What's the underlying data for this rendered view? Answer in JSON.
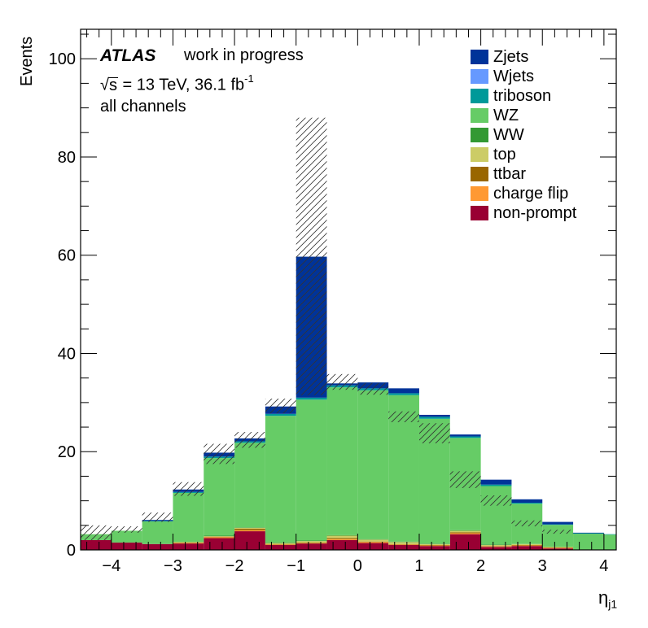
{
  "chart_data": {
    "type": "bar",
    "stacked": true,
    "x_edges": [
      -4.5,
      -4.0,
      -3.5,
      -3.0,
      -2.5,
      -2.0,
      -1.5,
      -1.0,
      -0.5,
      0.0,
      0.5,
      1.0,
      1.5,
      2.0,
      2.5,
      3.0,
      3.5,
      4.0,
      4.5
    ],
    "series": [
      {
        "name": "non-prompt",
        "color": "#990033",
        "values": [
          2.0,
          1.5,
          1.2,
          1.3,
          2.4,
          3.8,
          1.0,
          1.3,
          2.0,
          1.4,
          1.0,
          0.8,
          3.2,
          0.6,
          0.8,
          0.3,
          0.0,
          0.0
        ]
      },
      {
        "name": "charge flip",
        "color": "#ff9933",
        "values": [
          0.0,
          0.0,
          0.0,
          0.1,
          0.2,
          0.2,
          0.1,
          0.1,
          0.2,
          0.2,
          0.1,
          0.1,
          0.2,
          0.1,
          0.1,
          0.1,
          0.0,
          0.0
        ]
      },
      {
        "name": "ttbar",
        "color": "#996600",
        "values": [
          0.0,
          0.0,
          0.0,
          0.1,
          0.1,
          0.3,
          0.1,
          0.1,
          0.2,
          0.1,
          0.1,
          0.1,
          0.2,
          0.1,
          0.1,
          0.1,
          0.0,
          0.0
        ]
      },
      {
        "name": "top",
        "color": "#cccc66",
        "values": [
          0.0,
          0.0,
          0.0,
          0.1,
          0.1,
          0.2,
          0.2,
          0.3,
          0.5,
          0.4,
          0.4,
          0.2,
          0.3,
          0.2,
          0.2,
          0.1,
          0.0,
          0.0
        ]
      },
      {
        "name": "WW",
        "color": "#339933",
        "values": [
          0.0,
          0.0,
          0.0,
          0.0,
          0.1,
          0.1,
          0.1,
          0.1,
          0.1,
          0.1,
          0.1,
          0.1,
          0.1,
          0.1,
          0.0,
          0.0,
          0.0,
          0.0
        ]
      },
      {
        "name": "WZ",
        "color": "#66cc66",
        "values": [
          1.2,
          2.4,
          4.6,
          10.0,
          15.8,
          17.2,
          25.8,
          28.7,
          30.1,
          30.3,
          29.8,
          25.4,
          18.8,
          11.9,
          8.2,
          4.5,
          3.3,
          3.1
        ]
      },
      {
        "name": "triboson",
        "color": "#009999",
        "values": [
          0.0,
          0.0,
          0.1,
          0.2,
          0.3,
          0.3,
          0.4,
          0.4,
          0.4,
          0.4,
          0.4,
          0.4,
          0.3,
          0.3,
          0.2,
          0.1,
          0.1,
          0.1
        ]
      },
      {
        "name": "Wjets",
        "color": "#6699ff",
        "values": [
          0.0,
          0.0,
          0.0,
          0.0,
          0.0,
          0.0,
          0.0,
          0.0,
          0.0,
          0.0,
          0.0,
          0.0,
          0.0,
          0.0,
          0.0,
          0.0,
          0.0,
          0.0
        ]
      },
      {
        "name": "Zjets",
        "color": "#003399",
        "values": [
          0.0,
          0.0,
          0.2,
          0.5,
          0.8,
          0.6,
          1.5,
          28.7,
          0.4,
          1.2,
          1.0,
          0.4,
          0.4,
          1.0,
          0.7,
          0.5,
          0.1,
          0.0
        ]
      }
    ],
    "uncertainty_band": {
      "up": [
        5.0,
        4.8,
        7.6,
        13.8,
        21.6,
        24.0,
        30.8,
        88.0,
        35.8,
        34.0,
        28.2,
        25.8,
        16.0,
        11.1,
        6.0,
        4.1,
        0,
        0
      ],
      "down": [
        2.0,
        3.5,
        5.7,
        11.0,
        17.5,
        20.8,
        27.8,
        31.5,
        32.6,
        31.6,
        26.0,
        21.7,
        12.6,
        9.0,
        4.8,
        3.3,
        0,
        0
      ]
    },
    "xlabel": "η",
    "xlabel_sub": "j1",
    "ylabel": "Events",
    "xlim": [
      -4.5,
      4.2
    ],
    "ylim": [
      0,
      106
    ],
    "xticks": [
      -4,
      -3,
      -2,
      -1,
      0,
      1,
      2,
      3,
      4
    ],
    "yticks": [
      0,
      20,
      40,
      60,
      80,
      100
    ],
    "legend_placement": "top-right"
  },
  "annotations": {
    "atlas": "ATLAS",
    "status": "work in progress",
    "energy_prefix": "s",
    "energy_text": " = 13 TeV, 36.1 fb",
    "energy_sup": "-1",
    "channels": "all channels"
  },
  "legend": [
    {
      "label": "Zjets",
      "color": "#003399"
    },
    {
      "label": "Wjets",
      "color": "#6699ff"
    },
    {
      "label": "triboson",
      "color": "#009999"
    },
    {
      "label": "WZ",
      "color": "#66cc66"
    },
    {
      "label": "WW",
      "color": "#339933"
    },
    {
      "label": "top",
      "color": "#cccc66"
    },
    {
      "label": "ttbar",
      "color": "#996600"
    },
    {
      "label": "charge flip",
      "color": "#ff9933"
    },
    {
      "label": "non-prompt",
      "color": "#990033"
    }
  ]
}
